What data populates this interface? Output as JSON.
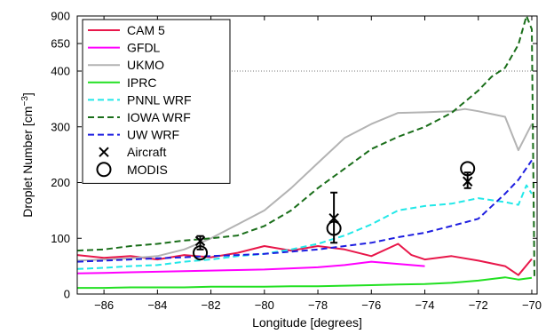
{
  "chart_data": {
    "type": "line",
    "xlabel": "Longitude [degrees]",
    "ylabel_main": "Droplet Number [cm",
    "ylabel_exp": "−3",
    "ylabel_close": "]",
    "xlim": [
      -87,
      -69.8
    ],
    "x_ticks": [
      -86,
      -84,
      -82,
      -80,
      -78,
      -76,
      -74,
      -72,
      -70
    ],
    "x_tick_labels": [
      "−86",
      "−84",
      "−82",
      "−80",
      "−78",
      "−76",
      "−74",
      "−72",
      "−70"
    ],
    "y_ticks": [
      {
        "value": 0,
        "label": "0"
      },
      {
        "value": 100,
        "label": "100"
      },
      {
        "value": 200,
        "label": "200"
      },
      {
        "value": 300,
        "label": "300"
      },
      {
        "value": 400,
        "label": "400"
      },
      {
        "value": 650,
        "label": "650"
      },
      {
        "value": 900,
        "label": "900"
      }
    ],
    "y_scale_note": "piecewise: linear 0–400, compressed 400–900",
    "break_line_y": 400,
    "grid": false,
    "legend_position": "top-left",
    "series": [
      {
        "name": "CAM 5",
        "color": "#e8174a",
        "dash": "solid",
        "x": [
          -87,
          -86,
          -85,
          -84,
          -83,
          -82,
          -81,
          -80,
          -79,
          -78,
          -77,
          -76,
          -75,
          -74.5,
          -74,
          -73,
          -72,
          -71,
          -70.5,
          -70
        ],
        "y": [
          70,
          65,
          68,
          62,
          70,
          66,
          74,
          86,
          78,
          86,
          80,
          68,
          90,
          70,
          62,
          68,
          60,
          50,
          34,
          63
        ]
      },
      {
        "name": "GFDL",
        "color": "#ff00ff",
        "dash": "solid",
        "x": [
          -87,
          -86,
          -85,
          -84,
          -83,
          -82,
          -81,
          -80,
          -79,
          -78,
          -77,
          -76,
          -75,
          -74
        ],
        "y": [
          37,
          38,
          39,
          40,
          41,
          42,
          43,
          44,
          46,
          48,
          52,
          58,
          54,
          50
        ]
      },
      {
        "name": "UKMO",
        "color": "#b3b3b3",
        "dash": "solid",
        "x": [
          -87,
          -86,
          -85,
          -84,
          -83,
          -82,
          -81,
          -80,
          -79,
          -78,
          -77,
          -76,
          -75,
          -74,
          -73,
          -72.5,
          -72,
          -71,
          -70.5,
          -70
        ],
        "y": [
          60,
          62,
          64,
          68,
          80,
          100,
          125,
          150,
          190,
          235,
          280,
          305,
          325,
          326,
          328,
          332,
          328,
          318,
          258,
          305
        ]
      },
      {
        "name": "IPRC",
        "color": "#22e022",
        "dash": "solid",
        "x": [
          -87,
          -86,
          -85,
          -84,
          -83,
          -82,
          -81,
          -80,
          -79,
          -78,
          -77,
          -76,
          -75,
          -74,
          -73,
          -72,
          -71,
          -70.5,
          -70
        ],
        "y": [
          11,
          11,
          12,
          12,
          12,
          13,
          13,
          13,
          14,
          14,
          15,
          16,
          17,
          18,
          20,
          24,
          30,
          26,
          29
        ]
      },
      {
        "name": "PNNL WRF",
        "color": "#22e8e8",
        "dash": "dashed",
        "x": [
          -87,
          -86,
          -85,
          -84,
          -83,
          -82,
          -81,
          -80,
          -79,
          -78,
          -77,
          -76,
          -75,
          -74,
          -73,
          -72,
          -71,
          -70.5,
          -70.2,
          -70
        ],
        "y": [
          45,
          47,
          50,
          52,
          58,
          62,
          68,
          72,
          80,
          90,
          105,
          125,
          150,
          158,
          162,
          172,
          165,
          160,
          195,
          180
        ]
      },
      {
        "name": "IOWA WRF",
        "color": "#1a6e1a",
        "dash": "dashed",
        "x": [
          -87,
          -86,
          -85,
          -84,
          -83,
          -82,
          -81,
          -80,
          -79,
          -78,
          -77,
          -76,
          -75,
          -74,
          -73,
          -72,
          -71.5,
          -71,
          -70.5,
          -70.2,
          -70,
          -69.9
        ],
        "y": [
          78,
          80,
          86,
          90,
          96,
          100,
          105,
          122,
          150,
          190,
          225,
          260,
          282,
          300,
          325,
          365,
          390,
          430,
          640,
          900,
          780,
          30
        ]
      },
      {
        "name": "UW WRF",
        "color": "#1e1ee0",
        "dash": "dashed",
        "x": [
          -87,
          -86,
          -85,
          -84,
          -83,
          -82,
          -81,
          -80,
          -79,
          -78,
          -77,
          -76,
          -75,
          -74,
          -73,
          -72,
          -71,
          -70.5,
          -70
        ],
        "y": [
          58,
          60,
          62,
          64,
          66,
          68,
          70,
          72,
          76,
          80,
          86,
          92,
          102,
          110,
          122,
          135,
          180,
          205,
          240
        ]
      }
    ],
    "aircraft": {
      "name": "Aircraft",
      "marker": "x",
      "points": [
        {
          "x": -82.4,
          "y": 95,
          "err_low": 80,
          "err_high": 104
        },
        {
          "x": -77.4,
          "y": 136,
          "err_low": 92,
          "err_high": 182
        },
        {
          "x": -72.4,
          "y": 202,
          "err_low": 190,
          "err_high": 218
        }
      ]
    },
    "modis": {
      "name": "MODIS",
      "marker": "o",
      "points": [
        {
          "x": -82.4,
          "y": 74
        },
        {
          "x": -77.4,
          "y": 118
        },
        {
          "x": -72.4,
          "y": 225
        }
      ]
    }
  }
}
